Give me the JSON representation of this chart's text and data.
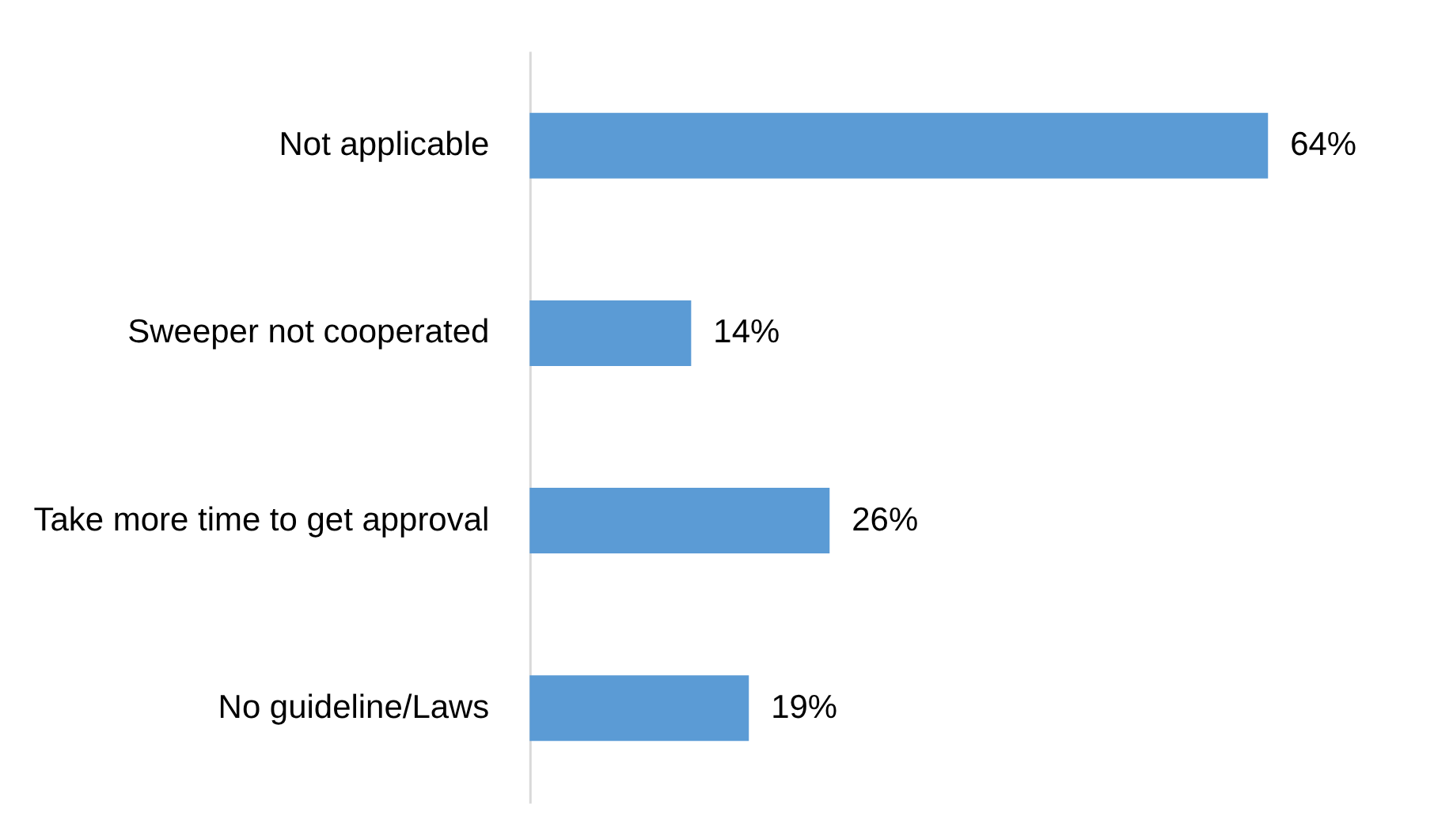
{
  "chart_data": {
    "type": "bar",
    "orientation": "horizontal",
    "categories": [
      "Not applicable",
      "Sweeper not cooperated",
      "Take more time to get approval",
      "No guideline/Laws"
    ],
    "values": [
      64,
      14,
      26,
      19
    ],
    "value_labels": [
      "64%",
      "14%",
      "26%",
      "19%"
    ],
    "color": "#5b9bd5",
    "grid": false
  }
}
